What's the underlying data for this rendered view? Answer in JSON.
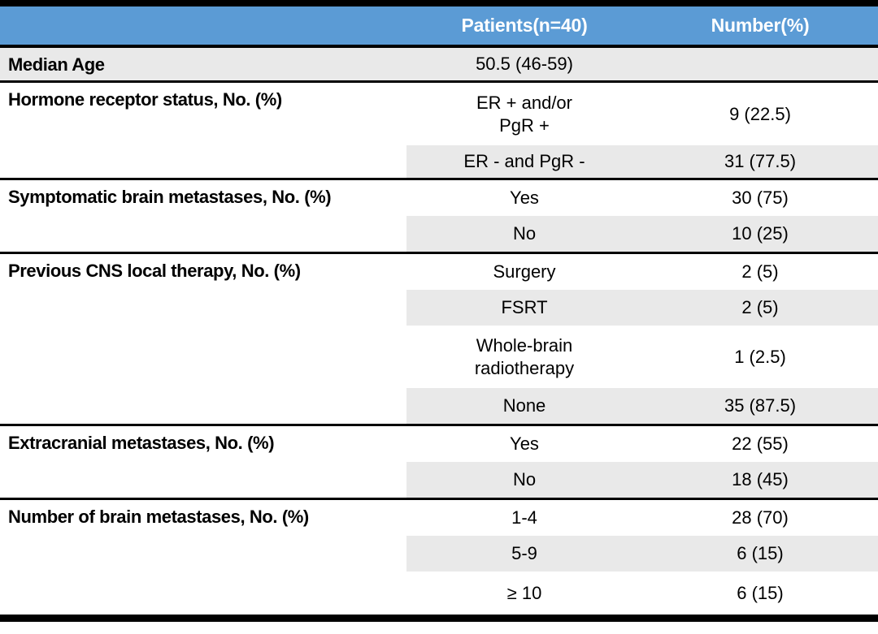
{
  "table": {
    "header": {
      "patients": "Patients(n=40)",
      "number": "Number(%)"
    },
    "colors": {
      "header_bg": "#5B9BD5",
      "header_text": "#FFFFFF",
      "row_shade": "#E9E9E9",
      "rule": "#000000"
    },
    "sections": [
      {
        "label": "Median Age",
        "rows": [
          {
            "category": "50.5 (46-59)",
            "value": ""
          }
        ]
      },
      {
        "label": "Hormone receptor status, No. (%)",
        "rows": [
          {
            "category": "ER + and/or\nPgR +",
            "value": "9 (22.5)"
          },
          {
            "category": "ER - and PgR -",
            "value": "31 (77.5)"
          }
        ]
      },
      {
        "label": "Symptomatic brain metastases, No. (%)",
        "rows": [
          {
            "category": "Yes",
            "value": "30 (75)"
          },
          {
            "category": "No",
            "value": "10 (25)"
          }
        ]
      },
      {
        "label": "Previous CNS local therapy, No. (%)",
        "rows": [
          {
            "category": "Surgery",
            "value": "2 (5)"
          },
          {
            "category": "FSRT",
            "value": "2 (5)"
          },
          {
            "category": "Whole-brain\nradiotherapy",
            "value": "1 (2.5)"
          },
          {
            "category": "None",
            "value": "35 (87.5)"
          }
        ]
      },
      {
        "label": "Extracranial metastases, No. (%)",
        "rows": [
          {
            "category": "Yes",
            "value": "22 (55)"
          },
          {
            "category": "No",
            "value": "18 (45)"
          }
        ]
      },
      {
        "label": "Number of brain metastases, No. (%)",
        "rows": [
          {
            "category": "1-4",
            "value": "28 (70)"
          },
          {
            "category": "5-9",
            "value": "6 (15)"
          },
          {
            "category": "≥ 10",
            "value": "6 (15)"
          }
        ]
      }
    ]
  }
}
